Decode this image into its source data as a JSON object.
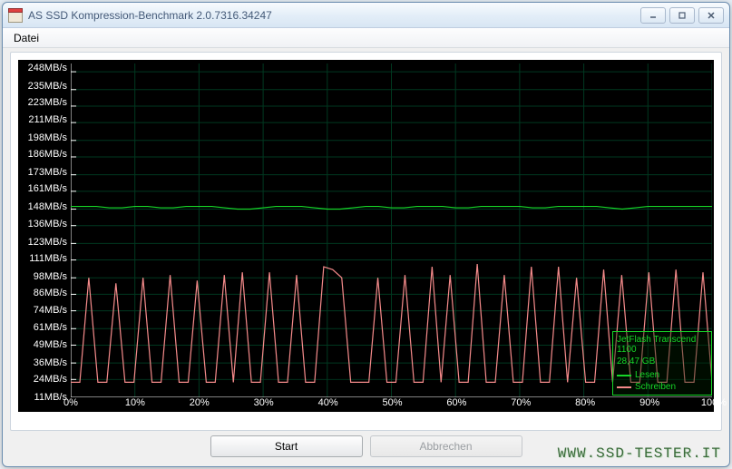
{
  "window": {
    "title": "AS SSD Kompression-Benchmark 2.0.7316.34247"
  },
  "menu": {
    "file": "Datei"
  },
  "chart": {
    "type": "line",
    "background_color": "#000000",
    "grid_color": "#003820",
    "axis_label_color": "#ffffff",
    "label_fontsize": 11,
    "y_ticks": [
      248,
      235,
      223,
      211,
      198,
      186,
      173,
      161,
      148,
      136,
      123,
      111,
      98,
      86,
      74,
      61,
      49,
      36,
      24,
      11
    ],
    "y_unit": "MB/s",
    "x_ticks_pct": [
      0,
      10,
      20,
      30,
      40,
      50,
      60,
      70,
      80,
      90,
      100
    ],
    "ylim": [
      11,
      254
    ],
    "xlim": [
      0,
      100
    ],
    "read": {
      "label": "Lesen",
      "color": "#16d628",
      "line_width": 1.2,
      "values_y": [
        150,
        150,
        150,
        149,
        149,
        150,
        150,
        149,
        149,
        150,
        150,
        150,
        149,
        148,
        148,
        149,
        150,
        150,
        150,
        149,
        148,
        148,
        149,
        150,
        150,
        149,
        149,
        150,
        150,
        150,
        149,
        149,
        150,
        150,
        150,
        150,
        149,
        149,
        150,
        150,
        150,
        150,
        149,
        148,
        149,
        150,
        150,
        150,
        150,
        150,
        150
      ]
    },
    "write": {
      "label": "Schreiben",
      "color": "#f48a8a",
      "line_width": 1.2,
      "values_y": [
        22,
        22,
        98,
        22,
        22,
        94,
        22,
        22,
        98,
        22,
        22,
        100,
        22,
        22,
        96,
        22,
        22,
        100,
        22,
        102,
        22,
        22,
        102,
        22,
        22,
        100,
        22,
        22,
        106,
        104,
        98,
        22,
        22,
        22,
        98,
        22,
        22,
        100,
        22,
        22,
        106,
        22,
        100,
        22,
        22,
        108,
        22,
        22,
        100,
        22,
        22,
        106,
        22,
        22,
        106,
        22,
        98,
        22,
        22,
        104,
        22,
        100,
        22,
        22,
        102,
        22,
        22,
        104,
        22,
        22,
        102,
        22
      ]
    }
  },
  "legend": {
    "device": "JetFlash Transcend 1100",
    "capacity": "28,47 GB",
    "border_color": "#16d628",
    "text_color": "#16d628"
  },
  "buttons": {
    "start": "Start",
    "cancel": "Abbrechen"
  },
  "watermark": "WWW.SSD-TESTER.IT"
}
